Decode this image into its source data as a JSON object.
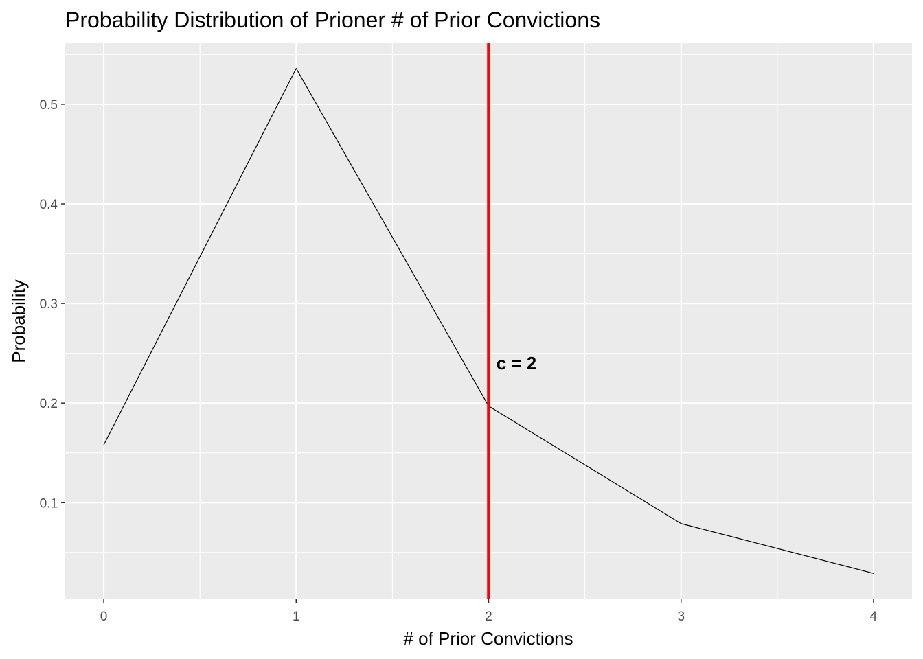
{
  "chart_data": {
    "type": "line",
    "title": "Probability Distribution of Prioner # of Prior Convictions",
    "xlabel": "# of Prior Convictions",
    "ylabel": "Probability",
    "x": [
      0,
      1,
      2,
      3,
      4
    ],
    "series": [
      {
        "values": [
          0.158,
          0.536,
          0.197,
          0.079,
          0.029
        ]
      }
    ],
    "xlim": [
      -0.2,
      4.2
    ],
    "ylim": [
      0.003,
      0.562
    ],
    "x_ticks": [
      0,
      1,
      2,
      3,
      4
    ],
    "y_ticks": [
      0.1,
      0.2,
      0.3,
      0.4,
      0.5
    ],
    "y_tick_labels": [
      "0.1",
      "0.2",
      "0.3",
      "0.4",
      "0.5"
    ],
    "vline": {
      "x": 2,
      "color": "#ff0000"
    },
    "annotation": {
      "text": "c = 2",
      "x": 2.04,
      "y": 0.24
    },
    "grid": true,
    "background": "#ebebeb",
    "line_color": "#000000"
  }
}
